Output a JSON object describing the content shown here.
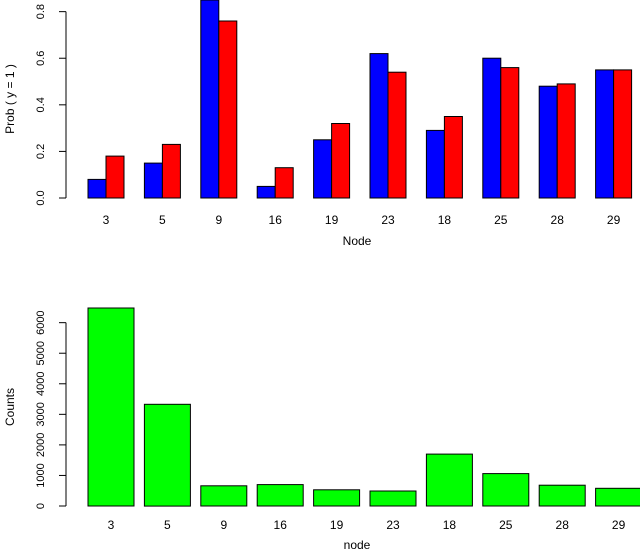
{
  "chart_data": [
    {
      "type": "bar",
      "categories": [
        "3",
        "5",
        "9",
        "16",
        "19",
        "23",
        "18",
        "25",
        "28",
        "29"
      ],
      "series": [
        {
          "values": [
            0.08,
            0.15,
            0.85,
            0.05,
            0.25,
            0.62,
            0.29,
            0.6,
            0.48,
            0.55
          ],
          "color": "#0000ff"
        },
        {
          "values": [
            0.18,
            0.23,
            0.76,
            0.13,
            0.32,
            0.54,
            0.35,
            0.56,
            0.49,
            0.55
          ],
          "color": "#ff0000"
        }
      ],
      "xlabel": "Node",
      "ylabel": "Prob ( y = 1 )",
      "ylim": [
        0,
        0.85
      ],
      "yticks": [
        0.0,
        0.2,
        0.4,
        0.6,
        0.8
      ],
      "ytick_labels": [
        "0.0",
        "0.2",
        "0.4",
        "0.6",
        "0.8"
      ],
      "grid": false,
      "legend": "none"
    },
    {
      "type": "bar",
      "categories": [
        "3",
        "5",
        "9",
        "16",
        "19",
        "23",
        "18",
        "25",
        "28",
        "29"
      ],
      "series": [
        {
          "values": [
            6480,
            3330,
            660,
            700,
            530,
            490,
            1700,
            1060,
            680,
            580
          ],
          "color": "#00ff00"
        }
      ],
      "xlabel": "node",
      "ylabel": "Counts",
      "ylim": [
        0,
        6480
      ],
      "yticks": [
        0,
        1000,
        2000,
        3000,
        4000,
        5000,
        6000
      ],
      "ytick_labels": [
        "0",
        "1000",
        "2000",
        "3000",
        "4000",
        "5000",
        "6000"
      ],
      "grid": false,
      "legend": "none"
    }
  ]
}
